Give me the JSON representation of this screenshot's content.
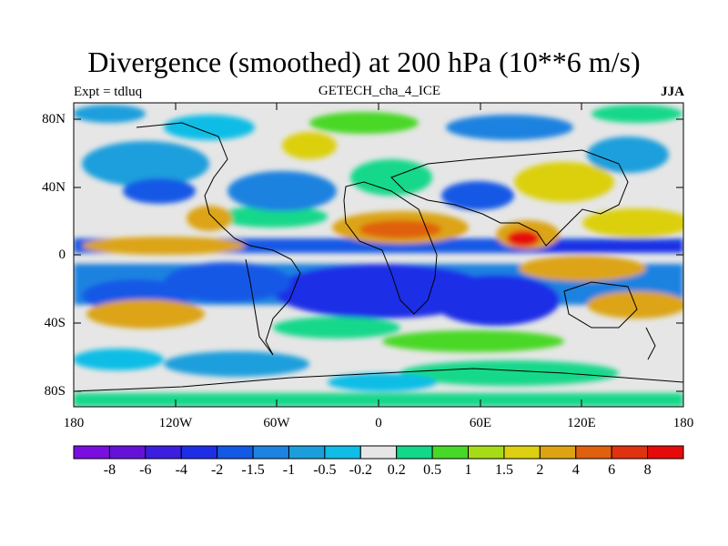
{
  "header": {
    "title": "Divergence (smoothed) at 200 hPa (10**6 m/s)",
    "subtitle": "GETECH_cha_4_ICE",
    "left_label": "Expt = tdluq",
    "right_label": "JJA"
  },
  "axes": {
    "y_ticks": [
      "80N",
      "40N",
      "0",
      "40S",
      "80S"
    ],
    "x_ticks": [
      "180",
      "120W",
      "60W",
      "0",
      "60E",
      "120E",
      "180"
    ]
  },
  "colorbar": {
    "labels": [
      "-8",
      "-6",
      "-4",
      "-2",
      "-1.5",
      "-1",
      "-0.5",
      "-0.2",
      "0.2",
      "0.5",
      "1",
      "1.5",
      "2",
      "4",
      "6",
      "8"
    ],
    "colors": [
      "#7a0ee0",
      "#6412d8",
      "#3c1ee0",
      "#1e2ee6",
      "#1259e6",
      "#1e82e0",
      "#1a9fdc",
      "#10bde6",
      "#e6e6e6",
      "#12d88a",
      "#48d828",
      "#a6dc16",
      "#dcd010",
      "#dca412",
      "#e0600e",
      "#e0320e",
      "#e60a0a"
    ]
  }
}
